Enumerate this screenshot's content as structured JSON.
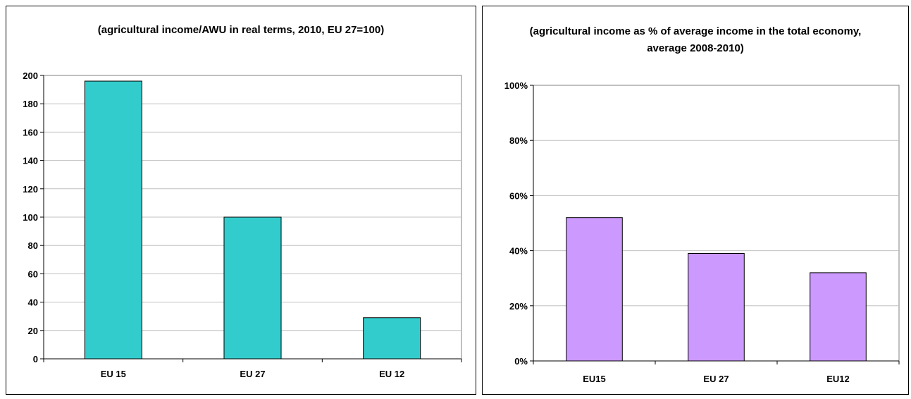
{
  "chart_data": [
    {
      "type": "bar",
      "title": "(agricultural income/AWU in real terms, 2010, EU 27=100)",
      "categories": [
        "EU 15",
        "EU 27",
        "EU 12"
      ],
      "values": [
        196,
        100,
        29
      ],
      "ylim": [
        0,
        200
      ],
      "yticks": [
        "0",
        "20",
        "40",
        "60",
        "80",
        "100",
        "120",
        "140",
        "160",
        "180",
        "200"
      ],
      "grid": true,
      "bar_color": "#33CCCC"
    },
    {
      "type": "bar",
      "title": "(agricultural income as % of average income in the total economy, average 2008-2010)",
      "categories": [
        "EU15",
        "EU 27",
        "EU12"
      ],
      "values": [
        52,
        39,
        32
      ],
      "ylim": [
        0,
        100
      ],
      "yticks": [
        "0%",
        "20%",
        "40%",
        "60%",
        "80%",
        "100%"
      ],
      "grid": true,
      "bar_color": "#CC99FF"
    }
  ]
}
